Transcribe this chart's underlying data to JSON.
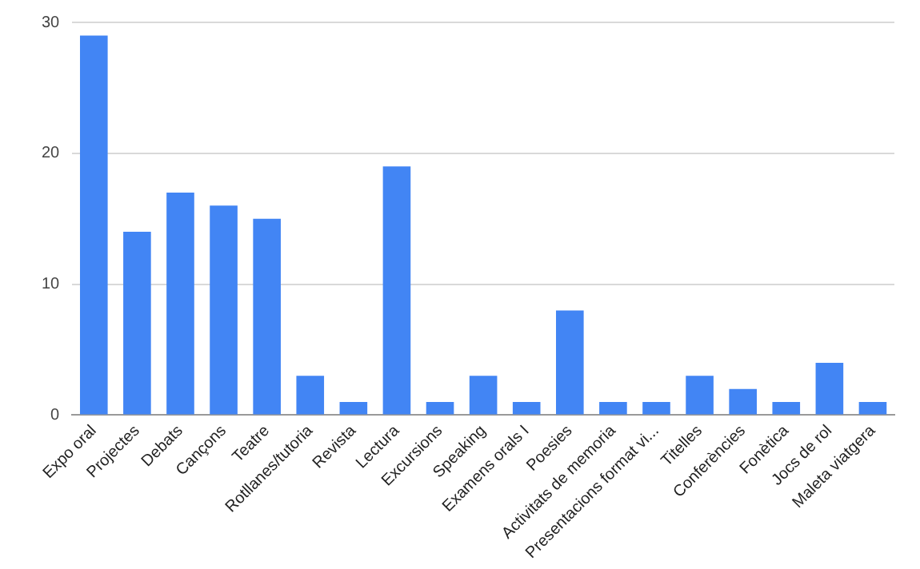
{
  "chart_data": {
    "type": "bar",
    "categories": [
      "Expo oral",
      "Projectes",
      "Debats",
      "Cançons",
      "Teatre",
      "Rotllanes/tutoria",
      "Revista",
      "Lectura",
      "Excursions",
      "Speaking",
      "Examens orals I",
      "Poesies",
      "Activitats de memoria",
      "Presentacions format vi...",
      "Titelles",
      "Conferències",
      "Fonètica",
      "Jocs de rol",
      "Maleta viatgera"
    ],
    "values": [
      29,
      14,
      17,
      16,
      15,
      3,
      1,
      19,
      1,
      3,
      1,
      8,
      1,
      1,
      3,
      2,
      1,
      4,
      1
    ],
    "color": "#4285f4",
    "ylim": [
      0,
      30
    ],
    "yticks": [
      0,
      10,
      20,
      30
    ],
    "grid": "y",
    "legend": false
  }
}
